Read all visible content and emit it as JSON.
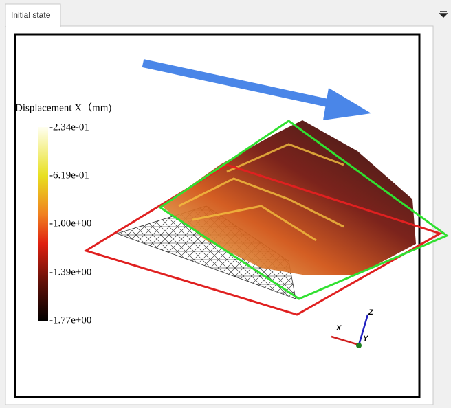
{
  "tab": {
    "label": "Initial state"
  },
  "legend": {
    "title": "Displacement X（mm)",
    "labels": [
      "-2.34e-01",
      "-6.19e-01",
      "-1.00e+00",
      "-1.39e+00",
      "-1.77e+00"
    ]
  },
  "triad": {
    "x": "X",
    "y": "Y",
    "z": "Z"
  }
}
